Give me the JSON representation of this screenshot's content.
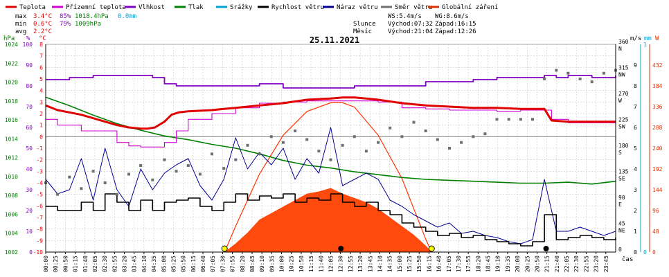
{
  "title": "25.11.2021",
  "legend": [
    {
      "label": "Teplota",
      "color": "#e00000"
    },
    {
      "label": "Přízemní teplota",
      "color": "#d000d0"
    },
    {
      "label": "Vlhkost",
      "color": "#8000c0"
    },
    {
      "label": "Tlak",
      "color": "#008000"
    },
    {
      "label": "Srážky",
      "color": "#00a0d0"
    },
    {
      "label": "Rychlost větru",
      "color": "#000000"
    },
    {
      "label": "Náraz větru",
      "color": "#000090"
    },
    {
      "label": "Směr větru",
      "color": "#707070"
    },
    {
      "label": "Globální záření",
      "color": "#e03000"
    }
  ],
  "stats": {
    "max": {
      "label": "max",
      "temp": "3.4°C",
      "hum": "85%",
      "press": "1018.4hPa",
      "rain": "0.0mm"
    },
    "min": {
      "label": "min",
      "temp": "0.6°C",
      "hum": "79%",
      "press": "1009hPa"
    },
    "avg": {
      "label": "avg",
      "temp": "2.2°C"
    }
  },
  "info": {
    "ws": "WS:5.4m/s",
    "wg": "WG:8.6m/s",
    "sun_label": "Slunce",
    "sun_rise": "Východ:07:32",
    "sun_set": "Západ:16:15",
    "moon_label": "Měsíc",
    "moon_rise": "Východ:21:04",
    "moon_set": "Západ:12:26"
  },
  "axis_units": {
    "pressure": "hPa",
    "humidity": "%",
    "temperature": "°C",
    "wind": "m/s",
    "rain": "mm",
    "radiation": "W",
    "time": "čas"
  },
  "colors": {
    "temp": "#e00000",
    "dew": "#d000d0",
    "hum": "#8000c0",
    "press": "#008000",
    "wind": "#000000",
    "gust": "#000090",
    "dir": "#707070",
    "rad": "#ff3300",
    "rad_fill": "#ff4000",
    "grid": "#c8c8c8",
    "rain": "#00a0d0"
  },
  "chart_data": {
    "type": "line",
    "time_ticks": [
      "00:00",
      "00:25",
      "00:50",
      "01:15",
      "01:40",
      "02:05",
      "02:30",
      "02:55",
      "03:20",
      "03:45",
      "04:10",
      "04:35",
      "05:00",
      "05:25",
      "05:50",
      "06:15",
      "06:40",
      "07:05",
      "07:30",
      "07:55",
      "08:20",
      "08:45",
      "09:10",
      "09:35",
      "10:00",
      "10:25",
      "10:50",
      "11:15",
      "11:40",
      "12:05",
      "12:30",
      "12:55",
      "13:20",
      "13:45",
      "14:10",
      "14:35",
      "15:00",
      "15:25",
      "15:50",
      "16:15",
      "16:40",
      "17:05",
      "17:30",
      "17:55",
      "18:20",
      "18:45",
      "19:10",
      "19:35",
      "20:00",
      "20:25",
      "20:50",
      "21:15",
      "21:40",
      "22:05",
      "22:30",
      "22:55",
      "23:20",
      "23:45"
    ],
    "x_range": [
      0,
      24
    ],
    "temperature_axis": {
      "label": "°C",
      "ticks": [
        8,
        7,
        6,
        5,
        4,
        3,
        2,
        1,
        0,
        -1,
        -2,
        -3,
        -4,
        -5,
        -6,
        -7,
        -8,
        -9,
        -10
      ],
      "range": [
        -10,
        8
      ]
    },
    "humidity_axis": {
      "label": "%",
      "ticks": [
        100,
        90,
        80,
        70,
        60,
        50,
        40,
        30,
        20,
        10,
        0
      ],
      "range": [
        0,
        100
      ]
    },
    "pressure_axis": {
      "label": "hPa",
      "ticks": [
        1024,
        1022,
        1020,
        1018,
        1016,
        1014,
        1012,
        1010,
        1008,
        1006,
        1004,
        1002
      ],
      "range": [
        1002,
        1024
      ]
    },
    "direction_axis": {
      "ticks": [
        "360",
        "N",
        "315",
        "NW",
        "270",
        "W",
        "225",
        "SW",
        "180",
        "S",
        "135",
        "SE",
        "90",
        "E",
        "45",
        "NE",
        "0"
      ],
      "range": [
        0,
        360
      ]
    },
    "wind_axis": {
      "label": "m/s",
      "ticks": [
        9,
        8,
        7,
        6,
        5,
        4,
        3,
        2,
        1,
        0
      ],
      "range": [
        0,
        10
      ]
    },
    "rain_axis": {
      "label": "mm",
      "ticks": [
        1,
        0
      ],
      "range": [
        0,
        1
      ]
    },
    "radiation_axis": {
      "ticks": [
        432,
        384,
        336,
        288,
        240,
        192,
        144,
        96,
        48,
        0
      ],
      "range": [
        0,
        480
      ]
    },
    "series": [
      {
        "name": "Teplota",
        "axis": "temperature",
        "x": [
          0,
          0.5,
          1,
          1.5,
          2,
          2.5,
          3,
          3.5,
          4,
          4.3,
          4.6,
          5,
          5.3,
          5.6,
          6,
          7,
          7.5,
          8,
          9,
          10,
          11,
          12,
          12.5,
          13,
          13.5,
          14,
          15,
          16,
          17,
          18,
          19,
          20,
          20.5,
          21,
          21.3,
          22,
          23,
          24
        ],
        "y": [
          2.7,
          2.3,
          2.1,
          1.9,
          1.6,
          1.3,
          1.0,
          0.8,
          0.7,
          0.7,
          0.8,
          1.3,
          1.9,
          2.1,
          2.2,
          2.3,
          2.4,
          2.5,
          2.7,
          2.9,
          3.2,
          3.3,
          3.4,
          3.4,
          3.3,
          3.2,
          2.9,
          2.7,
          2.6,
          2.5,
          2.5,
          2.4,
          2.4,
          2.4,
          1.4,
          1.3,
          1.3,
          1.3
        ]
      },
      {
        "name": "Přízemní teplota",
        "axis": "temperature",
        "x": [
          0,
          0.5,
          1,
          1.5,
          2,
          2.5,
          3,
          3.5,
          4,
          4.5,
          5,
          5.5,
          6,
          7,
          8,
          9,
          10,
          11,
          12,
          13,
          14,
          15,
          16,
          17,
          18,
          19,
          20,
          20.5,
          21,
          21.3,
          22,
          23,
          24
        ],
        "y": [
          1.5,
          1.0,
          1.0,
          0.5,
          0.5,
          0.5,
          -0.5,
          -0.8,
          -0.9,
          -0.9,
          -0.5,
          0.5,
          1.5,
          2.0,
          2.5,
          2.9,
          3.0,
          3.1,
          3.1,
          3.1,
          3.0,
          2.5,
          2.4,
          2.3,
          2.3,
          2.2,
          2.3,
          2.3,
          2.3,
          1.5,
          1.2,
          1.2,
          1.2
        ]
      },
      {
        "name": "Vlhkost",
        "axis": "humidity",
        "x": [
          0,
          1,
          2,
          3,
          4,
          4.5,
          5,
          5.5,
          6,
          7,
          8,
          9,
          10,
          11,
          12,
          13,
          14,
          15,
          16,
          17,
          18,
          19,
          20,
          20.5,
          21,
          21.5,
          22,
          23,
          24
        ],
        "y": [
          83,
          84,
          85,
          85,
          85,
          84,
          81,
          80,
          80,
          80,
          80,
          81,
          79,
          79,
          79,
          80,
          80,
          80,
          82,
          82,
          83,
          84,
          84,
          84,
          85,
          84,
          85,
          84,
          85
        ]
      },
      {
        "name": "Tlak",
        "axis": "pressure",
        "x": [
          0,
          1,
          2,
          3,
          4,
          5,
          6,
          7,
          8,
          9,
          10,
          11,
          12,
          13,
          14,
          15,
          16,
          17,
          18,
          19,
          20,
          21,
          22,
          23,
          24
        ],
        "y": [
          1018.4,
          1017.5,
          1016.5,
          1015.6,
          1014.9,
          1014.3,
          1013.9,
          1013.4,
          1013.0,
          1012.4,
          1011.7,
          1011.2,
          1010.9,
          1010.5,
          1010.2,
          1009.9,
          1009.7,
          1009.6,
          1009.5,
          1009.4,
          1009.3,
          1009.3,
          1009.4,
          1009.2,
          1009.5
        ]
      },
      {
        "name": "Rychlost větru",
        "axis": "wind",
        "x": [
          0,
          0.5,
          1,
          1.5,
          2,
          2.5,
          3,
          3.5,
          4,
          4.5,
          5,
          5.5,
          6,
          6.5,
          7,
          7.5,
          8,
          8.5,
          9,
          9.5,
          10,
          10.5,
          11,
          11.5,
          12,
          12.5,
          13,
          13.5,
          14,
          14.5,
          15,
          15.5,
          16,
          16.5,
          17,
          17.5,
          18,
          18.5,
          19,
          19.5,
          20,
          20.5,
          21,
          21.5,
          22,
          22.5,
          23,
          23.5,
          24
        ],
        "y": [
          2.2,
          2.0,
          2.0,
          2.4,
          2.0,
          2.8,
          2.4,
          2.0,
          2.5,
          2.0,
          2.4,
          2.5,
          2.6,
          2.2,
          2.0,
          2.4,
          2.8,
          2.5,
          2.7,
          2.6,
          2.8,
          2.4,
          2.6,
          2.5,
          2.8,
          2.4,
          2.2,
          2.4,
          2.0,
          1.8,
          1.4,
          1.2,
          1.0,
          0.8,
          0.9,
          0.7,
          0.8,
          0.6,
          0.5,
          0.4,
          0.3,
          0.5,
          1.8,
          0.6,
          0.7,
          0.8,
          0.7,
          0.6,
          0.7
        ]
      },
      {
        "name": "Náraz větru",
        "axis": "wind",
        "x": [
          0,
          0.5,
          1,
          1.5,
          2,
          2.5,
          3,
          3.5,
          4,
          4.5,
          5,
          5.5,
          6,
          6.5,
          7,
          7.5,
          8,
          8.5,
          9,
          9.5,
          10,
          10.5,
          11,
          11.5,
          12,
          12.5,
          13,
          13.5,
          14,
          14.5,
          15,
          15.5,
          16,
          16.5,
          17,
          17.5,
          18,
          18.5,
          19,
          19.5,
          20,
          20.5,
          21,
          21.5,
          22,
          22.5,
          23,
          23.5,
          24
        ],
        "y": [
          3.5,
          2.8,
          3.0,
          4.5,
          2.5,
          5.0,
          3.0,
          2.2,
          4.0,
          3.0,
          3.8,
          4.2,
          4.5,
          3.2,
          2.5,
          3.5,
          5.5,
          4.0,
          4.8,
          4.2,
          5.0,
          3.5,
          4.5,
          3.8,
          6.0,
          3.2,
          3.5,
          3.8,
          3.5,
          2.5,
          2.2,
          1.8,
          1.5,
          1.2,
          1.4,
          0.9,
          1.0,
          0.8,
          0.7,
          0.5,
          0.4,
          0.6,
          3.5,
          1.0,
          1.0,
          1.2,
          1.0,
          0.8,
          1.0
        ]
      },
      {
        "name": "Směr větru",
        "axis": "direction",
        "x": [
          0,
          0.5,
          1,
          1.5,
          2,
          2.5,
          3,
          3.5,
          4,
          4.5,
          5,
          5.5,
          6,
          6.5,
          7,
          7.5,
          8,
          8.5,
          9,
          9.5,
          10,
          10.5,
          11,
          11.5,
          12,
          12.5,
          13,
          13.5,
          14,
          14.5,
          15,
          15.5,
          16,
          16.5,
          17,
          17.5,
          18,
          18.5,
          19,
          19.5,
          20,
          20.5,
          21,
          21.5,
          22,
          22.5,
          23,
          23.5,
          24
        ],
        "y": [
          120,
          100,
          130,
          110,
          140,
          120,
          100,
          135,
          150,
          125,
          160,
          140,
          150,
          135,
          170,
          145,
          160,
          185,
          170,
          200,
          190,
          210,
          195,
          175,
          160,
          185,
          200,
          175,
          190,
          215,
          200,
          225,
          210,
          195,
          180,
          190,
          200,
          205,
          230,
          230,
          230,
          230,
          300,
          315,
          310,
          300,
          295,
          310,
          315
        ]
      },
      {
        "name": "Globální záření",
        "axis": "radiation",
        "x": [
          7.53,
          8,
          8.5,
          9,
          9.5,
          10,
          10.5,
          11,
          11.5,
          12,
          12.5,
          13,
          13.5,
          14,
          14.5,
          15,
          15.5,
          16,
          16.25
        ],
        "y": [
          0,
          20,
          45,
          75,
          90,
          105,
          120,
          135,
          140,
          148,
          135,
          125,
          115,
          100,
          80,
          60,
          40,
          15,
          0
        ]
      },
      {
        "name": "Srážky",
        "axis": "rain",
        "x": [
          0,
          24
        ],
        "y": [
          0,
          0
        ]
      }
    ],
    "clear_sky_radiation": {
      "x": [
        7.53,
        8,
        9,
        10,
        11,
        12,
        12.5,
        13,
        14,
        15,
        16,
        16.25
      ],
      "y": [
        0,
        60,
        180,
        270,
        325,
        345,
        345,
        335,
        270,
        170,
        30,
        0
      ]
    },
    "markers": [
      {
        "name": "Východ slunce",
        "time": 7.53,
        "type": "sun"
      },
      {
        "name": "Západ slunce",
        "time": 16.25,
        "type": "sun"
      },
      {
        "name": "Západ měsíce",
        "time": 12.43,
        "type": "moon"
      },
      {
        "name": "Východ měsíce",
        "time": 21.07,
        "type": "moon"
      }
    ],
    "grid": true
  }
}
